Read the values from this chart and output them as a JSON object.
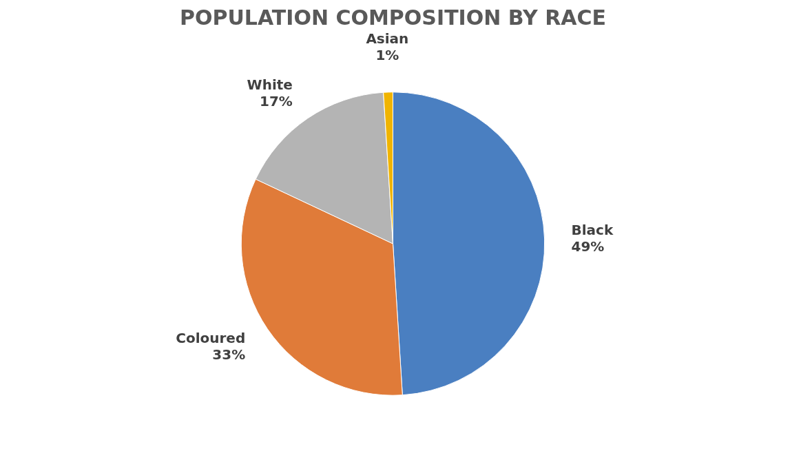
{
  "chart_data": {
    "type": "pie",
    "title": "POPULATION COMPOSITION BY RACE",
    "categories": [
      "Black",
      "Coloured",
      "White",
      "Asian"
    ],
    "values": [
      49,
      33,
      17,
      1
    ],
    "value_labels": [
      "49%",
      "33%",
      "17%",
      "1%"
    ],
    "colors": [
      "#4a7fc1",
      "#e07b39",
      "#b4b4b4",
      "#f0b400"
    ]
  }
}
